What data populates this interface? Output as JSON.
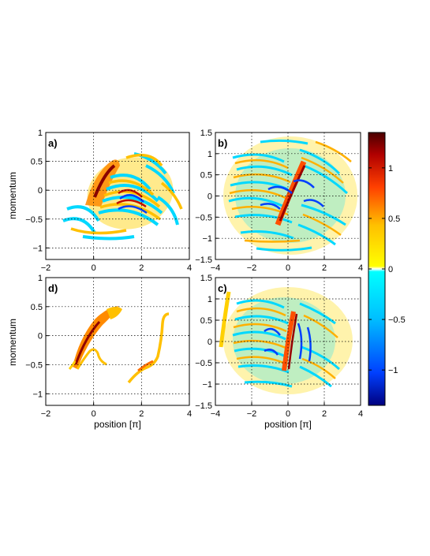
{
  "chart_data": [
    {
      "type": "heatmap",
      "panel_label": "a)",
      "xlabel": "",
      "ylabel": "momentum",
      "xlim": [
        -2,
        4
      ],
      "ylim": [
        -1.2,
        1
      ],
      "xticks": [
        "-2",
        "0",
        "2",
        "4"
      ],
      "yticks": [
        "1",
        "0.5",
        "0",
        "-0.5",
        "-1"
      ],
      "grid": true
    },
    {
      "type": "heatmap",
      "panel_label": "b)",
      "xlabel": "",
      "ylabel": "",
      "xlim": [
        -4,
        4
      ],
      "ylim": [
        -1.5,
        1.5
      ],
      "xticks": [
        "-4",
        "-2",
        "0",
        "2",
        "4"
      ],
      "yticks": [
        "1.5",
        "1",
        "0.5",
        "0",
        "-0.5",
        "-1",
        "-1.5"
      ],
      "grid": true
    },
    {
      "type": "heatmap",
      "panel_label": "d)",
      "xlabel": "position [π]",
      "ylabel": "momentum",
      "xlim": [
        -2,
        4
      ],
      "ylim": [
        -1.2,
        1
      ],
      "xticks": [
        "-2",
        "0",
        "2",
        "4"
      ],
      "yticks": [
        "1",
        "0.5",
        "0",
        "-0.5",
        "-1"
      ],
      "grid": true
    },
    {
      "type": "heatmap",
      "panel_label": "c)",
      "xlabel": "position [π]",
      "ylabel": "",
      "xlim": [
        -4,
        4
      ],
      "ylim": [
        -1.5,
        1.5
      ],
      "xticks": [
        "-4",
        "-2",
        "0",
        "2",
        "4"
      ],
      "yticks": [
        "1.5",
        "1",
        "0.5",
        "0",
        "-0.5",
        "-1",
        "-1.5"
      ],
      "grid": true
    }
  ],
  "colorbar": {
    "range": [
      -1.35,
      1.35
    ],
    "ticks": [
      "1",
      "0.5",
      "0",
      "-0.5",
      "-1"
    ],
    "colors": [
      "#00007f",
      "#0040ff",
      "#00c0ff",
      "#00ffff",
      "#ffffff",
      "#ffff00",
      "#ffc000",
      "#ff4000",
      "#b00000",
      "#4a0000"
    ]
  }
}
